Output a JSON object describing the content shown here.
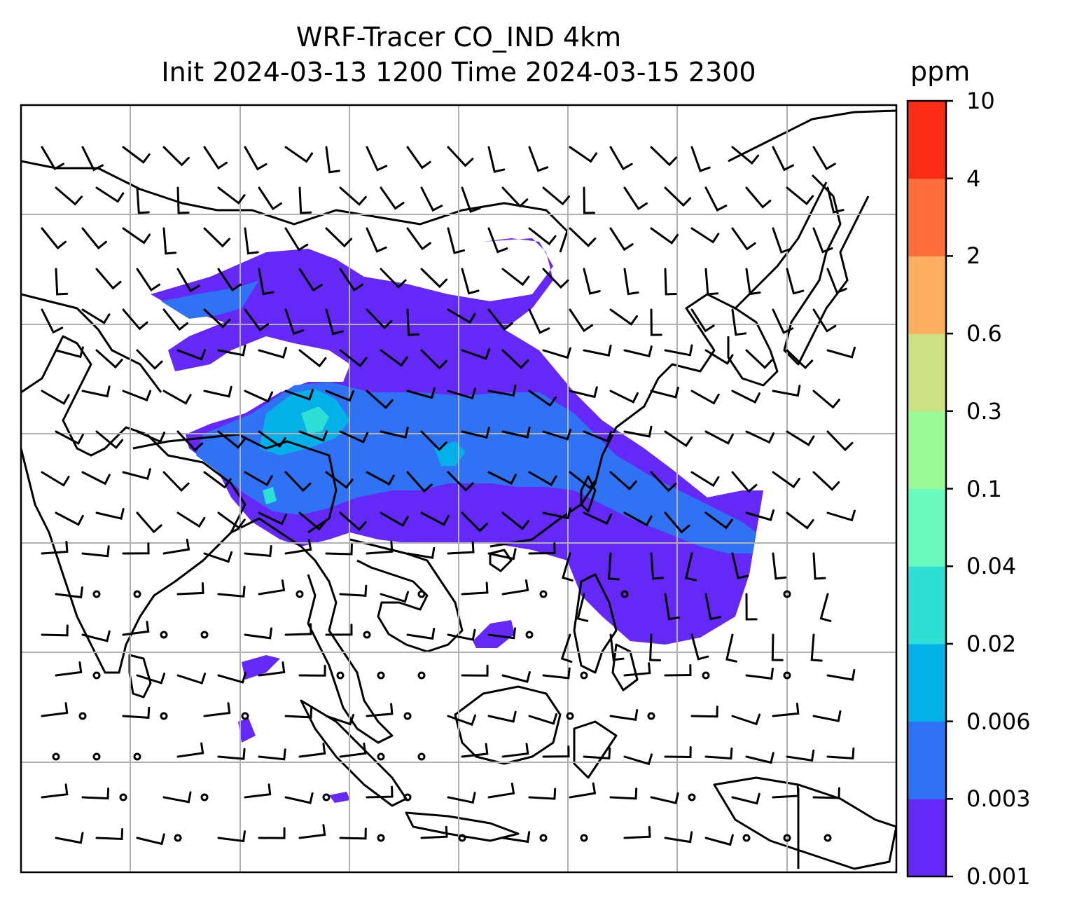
{
  "title": {
    "line1": "WRF-Tracer CO_IND 4km",
    "line2": "Init 2024-03-13 1200 Time 2024-03-15 2300"
  },
  "colorbar": {
    "unit": "ppm",
    "levels": [
      "0.001",
      "0.003",
      "0.006",
      "0.02",
      "0.04",
      "0.1",
      "0.3",
      "0.6",
      "2",
      "4",
      "10"
    ],
    "colors": [
      "#6429f7",
      "#2f72f4",
      "#03b0e8",
      "#2edfd5",
      "#68fbbd",
      "#98fb96",
      "#cde084",
      "#fdae60",
      "#fe6d3c",
      "#fd2c16"
    ]
  },
  "map": {
    "gridline_color": "#b0b0b0",
    "plume_colors": {
      "outer": "#6429f7",
      "mid": "#2f72f4",
      "core": "#03b0e8",
      "hot": "#2edfd5"
    }
  }
}
